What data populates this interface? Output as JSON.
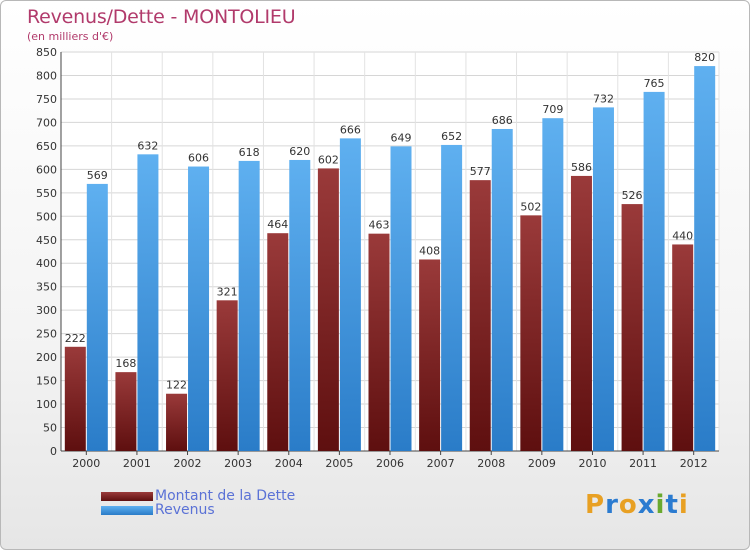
{
  "header": {
    "title": "Revenus/Dette - MONTOLIEU",
    "subtitle": "(en milliers d'€)"
  },
  "legend": {
    "items": [
      {
        "label": "Montant de la Dette",
        "color": "#7b1c1c"
      },
      {
        "label": "Revenus",
        "color": "#3a8fd8"
      }
    ]
  },
  "logo": {
    "text": "Proxiti",
    "colors": [
      "#e8a023",
      "#2b7bd0",
      "#e8a023",
      "#2b7bd0",
      "#6aa92e",
      "#2b7bd0",
      "#e8a023"
    ]
  },
  "chart_data": {
    "type": "bar",
    "title": "Revenus/Dette - MONTOLIEU",
    "subtitle": "(en milliers d'€)",
    "xlabel": "",
    "ylabel": "",
    "ylim": [
      0,
      850
    ],
    "yticks": [
      0,
      50,
      100,
      150,
      200,
      250,
      300,
      350,
      400,
      450,
      500,
      550,
      600,
      650,
      700,
      750,
      800,
      850
    ],
    "grid": true,
    "legend_position": "bottom-left",
    "categories": [
      "2000",
      "2001",
      "2002",
      "2003",
      "2004",
      "2005",
      "2006",
      "2007",
      "2008",
      "2009",
      "2010",
      "2011",
      "2012"
    ],
    "series": [
      {
        "name": "Montant de la Dette",
        "color": "#7b1c1c",
        "values": [
          222,
          168,
          122,
          321,
          464,
          602,
          463,
          408,
          577,
          502,
          586,
          526,
          440
        ]
      },
      {
        "name": "Revenus",
        "color": "#3a8fd8",
        "values": [
          569,
          632,
          606,
          618,
          620,
          666,
          649,
          652,
          686,
          709,
          732,
          765,
          820
        ]
      }
    ]
  }
}
